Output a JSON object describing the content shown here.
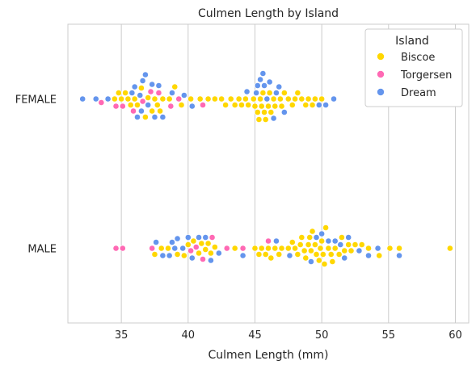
{
  "chart_data": {
    "type": "scatter",
    "subtype": "swarm",
    "title": "Culmen Length by Island",
    "xlabel": "Culmen Length (mm)",
    "ylabel": "",
    "xlim": [
      31,
      61
    ],
    "xticks": [
      35,
      40,
      45,
      50,
      55,
      60
    ],
    "categories": [
      "FEMALE",
      "MALE"
    ],
    "grid": "vertical",
    "legend": {
      "title": "Island",
      "placement": "top-right"
    },
    "series": [
      {
        "name": "Biscoe",
        "color": "#FFD700",
        "points": [
          {
            "category": "FEMALE",
            "values": [
              34.5,
              34.8,
              35.0,
              35.3,
              35.5,
              35.7,
              36.0,
              36.2,
              36.5,
              36.8,
              37.0,
              37.3,
              37.5,
              37.7,
              37.9,
              38.1,
              38.6,
              39.0,
              39.5,
              40.2,
              40.9,
              41.5,
              42.0,
              42.5,
              42.8,
              43.2,
              43.5,
              43.8,
              44.0,
              44.3,
              44.5,
              44.9,
              45.0,
              45.2,
              45.3,
              45.4,
              45.5,
              45.6,
              45.7,
              45.8,
              46.0,
              46.1,
              46.2,
              46.4,
              46.5,
              46.9,
              47.0,
              47.2,
              47.5,
              47.8,
              48.0,
              48.2,
              48.5,
              48.8,
              49.0,
              49.3,
              49.5,
              50.0
            ]
          },
          {
            "category": "MALE",
            "values": [
              37.5,
              38.0,
              38.5,
              39.2,
              39.7,
              40.0,
              40.4,
              40.8,
              41.0,
              41.3,
              41.5,
              41.7,
              42.0,
              43.5,
              45.0,
              45.3,
              45.5,
              45.8,
              46.0,
              46.2,
              46.5,
              46.8,
              47.0,
              47.5,
              47.8,
              48.0,
              48.2,
              48.4,
              48.5,
              48.7,
              48.8,
              49.0,
              49.1,
              49.2,
              49.3,
              49.5,
              49.6,
              49.8,
              49.9,
              50.0,
              50.1,
              50.2,
              50.3,
              50.5,
              50.7,
              50.8,
              51.0,
              51.3,
              51.5,
              51.7,
              52.0,
              52.2,
              52.5,
              53.0,
              53.5,
              54.3,
              55.1,
              55.8,
              59.6
            ]
          }
        ]
      },
      {
        "name": "Torgersen",
        "color": "#FF69B4",
        "points": [
          {
            "category": "FEMALE",
            "values": [
              33.5,
              34.6,
              35.1,
              35.9,
              36.6,
              37.2,
              37.8,
              38.7,
              39.3,
              41.1
            ]
          },
          {
            "category": "MALE",
            "values": [
              34.6,
              35.1,
              37.3,
              40.2,
              40.6,
              41.1,
              41.8,
              42.9,
              44.1,
              46.0
            ]
          }
        ]
      },
      {
        "name": "Dream",
        "color": "#6495ED",
        "points": [
          {
            "category": "FEMALE",
            "values": [
              32.1,
              33.1,
              34.0,
              35.8,
              36.0,
              36.2,
              36.4,
              36.5,
              36.6,
              36.8,
              37.0,
              37.3,
              37.5,
              37.8,
              38.1,
              38.8,
              39.7,
              40.3,
              44.4,
              45.1,
              45.2,
              45.4,
              45.6,
              45.7,
              45.9,
              46.1,
              46.4,
              46.6,
              46.8,
              47.2,
              49.8,
              50.3,
              50.9
            ]
          },
          {
            "category": "MALE",
            "values": [
              37.6,
              38.1,
              38.6,
              38.8,
              39.0,
              39.2,
              39.6,
              40.0,
              40.3,
              40.8,
              41.3,
              41.7,
              42.3,
              44.1,
              46.6,
              47.6,
              49.2,
              49.6,
              50.0,
              50.5,
              51.0,
              51.4,
              51.7,
              52.0,
              52.8,
              53.5,
              54.2,
              55.8
            ]
          }
        ]
      }
    ]
  }
}
